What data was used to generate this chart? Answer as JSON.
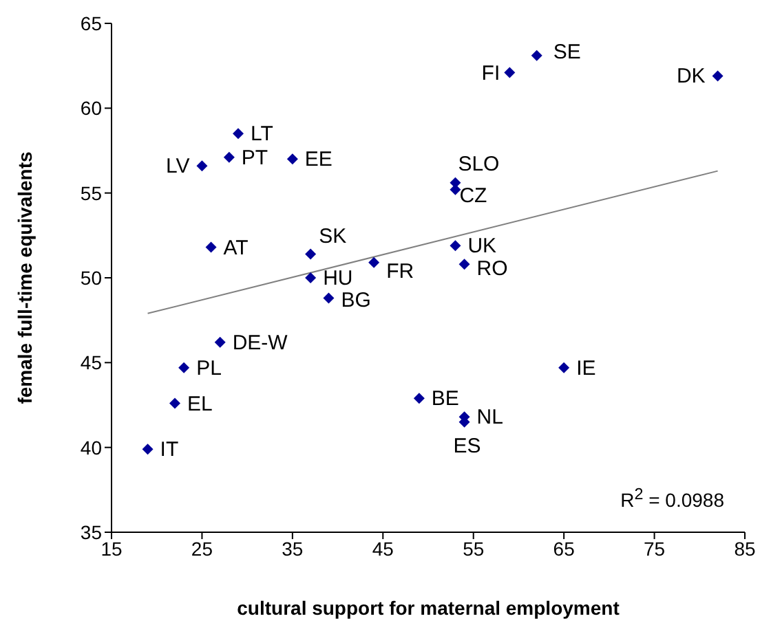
{
  "chart_data": {
    "type": "scatter",
    "xlabel": "cultural support for maternal employment",
    "ylabel": "female full-time equivalents",
    "xlim": [
      15,
      85
    ],
    "xticks": [
      15,
      25,
      35,
      45,
      55,
      65,
      75,
      85
    ],
    "ylim": [
      35,
      65
    ],
    "yticks": [
      35,
      40,
      45,
      50,
      55,
      60,
      65
    ],
    "grid": false,
    "legend": false,
    "marker": "diamond",
    "series": [
      {
        "color": "#000099",
        "x": [
          19,
          22,
          23,
          27,
          25,
          28,
          29,
          26,
          35,
          37,
          37,
          39,
          44,
          49,
          54,
          54,
          53,
          54,
          53,
          53,
          59,
          62,
          65,
          82
        ],
        "values": [
          39.9,
          42.6,
          44.7,
          46.2,
          56.6,
          57.1,
          58.5,
          51.8,
          57.0,
          51.4,
          50.0,
          48.8,
          50.9,
          42.9,
          41.8,
          41.5,
          51.9,
          50.8,
          55.6,
          55.2,
          62.1,
          63.1,
          44.7,
          61.9
        ]
      },
      {
        "type": "line",
        "color": "#808080",
        "x": [
          19,
          82
        ],
        "values": [
          47.9,
          56.3
        ],
        "marker": "none",
        "line_style": "solid"
      }
    ],
    "annotations": [
      {
        "text": "IT",
        "x": 19,
        "y": 39.9
      },
      {
        "text": "EL",
        "x": 22,
        "y": 42.6
      },
      {
        "text": "PL",
        "x": 23,
        "y": 44.7
      },
      {
        "text": "DE-W",
        "x": 27,
        "y": 46.2
      },
      {
        "text": "LV",
        "x": 25,
        "y": 56.6
      },
      {
        "text": "PT",
        "x": 28,
        "y": 57.1
      },
      {
        "text": "LT",
        "x": 29,
        "y": 58.5
      },
      {
        "text": "AT",
        "x": 26,
        "y": 51.8
      },
      {
        "text": "EE",
        "x": 35,
        "y": 57.0
      },
      {
        "text": "SK",
        "x": 37,
        "y": 51.4
      },
      {
        "text": "HU",
        "x": 37,
        "y": 50.0
      },
      {
        "text": "BG",
        "x": 39,
        "y": 48.8
      },
      {
        "text": "FR",
        "x": 44,
        "y": 50.9
      },
      {
        "text": "BE",
        "x": 49,
        "y": 42.9
      },
      {
        "text": "NL",
        "x": 54,
        "y": 41.8
      },
      {
        "text": "ES",
        "x": 54,
        "y": 41.5
      },
      {
        "text": "UK",
        "x": 53,
        "y": 51.9
      },
      {
        "text": "RO",
        "x": 54,
        "y": 50.8
      },
      {
        "text": "SLO",
        "x": 53,
        "y": 55.6
      },
      {
        "text": "CZ",
        "x": 53,
        "y": 55.2
      },
      {
        "text": "FI",
        "x": 59,
        "y": 62.1
      },
      {
        "text": "SE",
        "x": 62,
        "y": 63.1
      },
      {
        "text": "IE",
        "x": 65,
        "y": 44.7
      },
      {
        "text": "DK",
        "x": 82,
        "y": 61.9
      },
      "R$^{2}$ = 0.0988"
    ]
  }
}
